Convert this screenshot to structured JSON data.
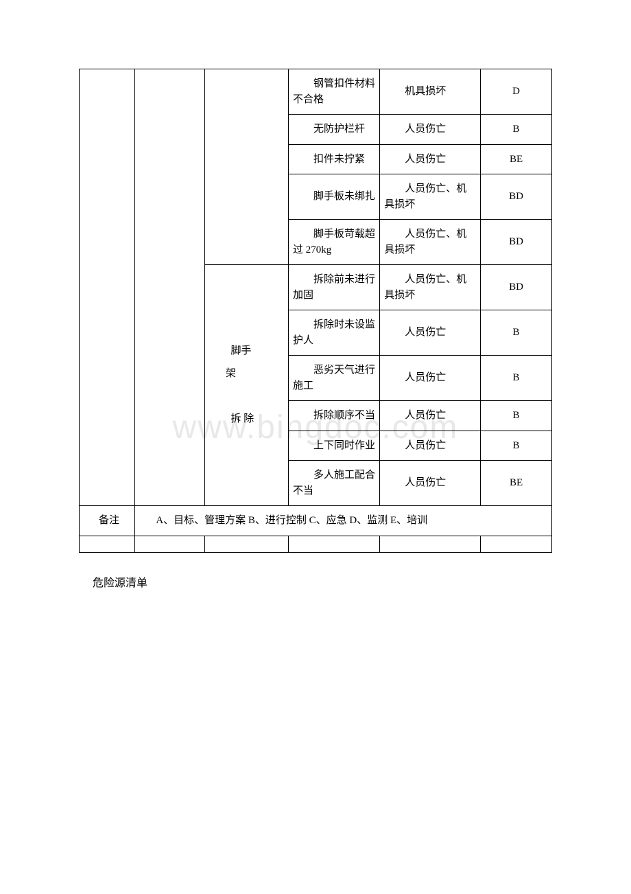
{
  "watermark": "www.bingdoc.com",
  "table": {
    "col1_width": 72,
    "col2_width": 90,
    "col3_width": 108,
    "col4_width": 118,
    "col5_width": 130,
    "col6_width": 92,
    "border_color": "#000000",
    "text_color": "#000000",
    "background_color": "#ffffff",
    "font_size": 15,
    "rows": [
      {
        "c4": "钢管扣件材料不合格",
        "c5": "机具损坏",
        "c6": "D"
      },
      {
        "c4": "无防护栏杆",
        "c5": "人员伤亡",
        "c6": "B"
      },
      {
        "c4": "扣件未拧紧",
        "c5": "人员伤亡",
        "c6": "BE"
      },
      {
        "c4": "脚手板未绑扎",
        "c5": "人员伤亡、机具损坏",
        "c6": "BD"
      },
      {
        "c4": "脚手板苛载超过 270kg",
        "c5": "人员伤亡、机具损坏",
        "c6": "BD"
      },
      {
        "c4": "拆除前未进行加固",
        "c5": "人员伤亡、机具损坏",
        "c6": "BD"
      },
      {
        "c4": "拆除时未设监护人",
        "c5": "人员伤亡",
        "c6": "B"
      },
      {
        "c4": "恶劣天气进行施工",
        "c5": "人员伤亡",
        "c6": "B"
      },
      {
        "c4": "拆除顺序不当",
        "c5": "人员伤亡",
        "c6": "B"
      },
      {
        "c4": "上下同时作业",
        "c5": "人员伤亡",
        "c6": "B"
      },
      {
        "c4": "多人施工配合不当",
        "c5": "人员伤亡",
        "c6": "BE"
      }
    ],
    "section_label": "脚手架\n\n拆 除",
    "note_label": "备注",
    "note_text": "A、目标、管理方案 B、进行控制 C、应急 D、监测 E、培训"
  },
  "bottom_title": "危险源清单"
}
